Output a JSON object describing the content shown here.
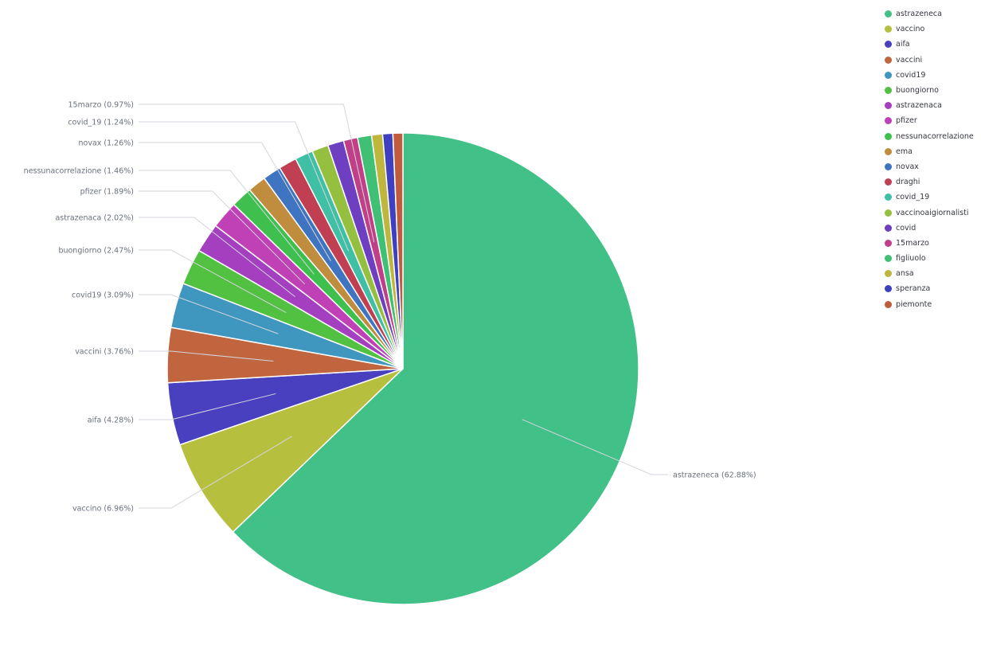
{
  "chart_data": {
    "type": "pie",
    "legend_position": "right",
    "slices": [
      {
        "name": "astrazeneca",
        "value": 62.88,
        "label": "astrazeneca (62.88%)",
        "color": "#41c087"
      },
      {
        "name": "vaccino",
        "value": 6.96,
        "label": "vaccino (6.96%)",
        "color": "#b6bf3e"
      },
      {
        "name": "aifa",
        "value": 4.28,
        "label": "aifa (4.28%)",
        "color": "#4940c0"
      },
      {
        "name": "vaccini",
        "value": 3.76,
        "label": "vaccini (3.76%)",
        "color": "#c0653e"
      },
      {
        "name": "covid19",
        "value": 3.09,
        "label": "covid19 (3.09%)",
        "color": "#3f97c0"
      },
      {
        "name": "buongiorno",
        "value": 2.47,
        "label": "buongiorno (2.47%)",
        "color": "#52c041"
      },
      {
        "name": "astrazenaca",
        "value": 2.02,
        "label": "astrazenaca (2.02%)",
        "color": "#a43fc0"
      },
      {
        "name": "pfizer",
        "value": 1.89,
        "label": "pfizer (1.89%)",
        "color": "#c040b6"
      },
      {
        "name": "nessunacorrelazione",
        "value": 1.46,
        "label": "nessunacorrelazione (1.46%)",
        "color": "#3fc04e"
      },
      {
        "name": "ema",
        "value": 1.26,
        "label": "",
        "color": "#c08c3e"
      },
      {
        "name": "novax",
        "value": 1.26,
        "label": "novax (1.26%)",
        "color": "#3f74c0"
      },
      {
        "name": "draghi",
        "value": 1.24,
        "label": "",
        "color": "#c03f52"
      },
      {
        "name": "covid_19",
        "value": 1.24,
        "label": "covid_19 (1.24%)",
        "color": "#3fc0a5"
      },
      {
        "name": "vaccinoaigiornalisti",
        "value": 1.13,
        "label": "",
        "color": "#95c03f"
      },
      {
        "name": "covid",
        "value": 1.1,
        "label": "",
        "color": "#6e3fc0"
      },
      {
        "name": "15marzo",
        "value": 0.97,
        "label": "15marzo (0.97%)",
        "color": "#c03f86"
      },
      {
        "name": "figliuolo",
        "value": 0.96,
        "label": "",
        "color": "#3fc074"
      },
      {
        "name": "ansa",
        "value": 0.75,
        "label": "",
        "color": "#bfb63e"
      },
      {
        "name": "speranza",
        "value": 0.7,
        "label": "",
        "color": "#3f40c0"
      },
      {
        "name": "piemonte",
        "value": 0.68,
        "label": "",
        "color": "#c05c3e"
      }
    ]
  }
}
